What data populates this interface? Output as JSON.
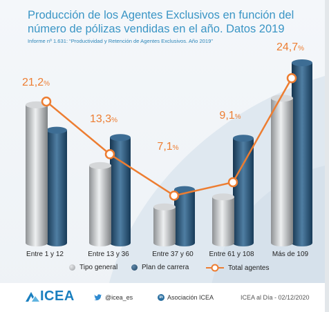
{
  "title": "Producción de los Agentes Exclusivos en función del número de pólizas vendidas en el año. Datos 2019",
  "subtitle": "Informe nº 1.631: “Productividad y Retención de Agentes Exclusivos. Año 2019”",
  "colors": {
    "title": "#3a95c5",
    "tipo_general": "#b9bcbf",
    "plan_de_carrera": "#2a5578",
    "total_line": "#ed7d31",
    "label": "#ed7d31"
  },
  "chart_data": {
    "type": "bar",
    "categories": [
      "Entre 1 y 12",
      "Entre 13 y 36",
      "Entre 37 y 60",
      "Entre 61 y 108",
      "Más de 109"
    ],
    "value_labels": [
      "21,2%",
      "13,3%",
      "7,1%",
      "9,1%",
      "24,7%"
    ],
    "series": [
      {
        "name": "Tipo general",
        "type": "bar",
        "values": [
          20.7,
          11.6,
          5.4,
          6.9,
          21.7
        ]
      },
      {
        "name": "Plan de carrera",
        "type": "bar",
        "values": [
          16.9,
          15.8,
          8.0,
          15.7,
          27.0
        ]
      },
      {
        "name": "Total agentes",
        "type": "line",
        "values": [
          21.2,
          13.3,
          7.1,
          9.1,
          24.7
        ]
      }
    ],
    "ylim": [
      0,
      30
    ],
    "grid": false,
    "legend": "bottom"
  },
  "legend": {
    "tipo_general": "Tipo general",
    "plan_de_carrera": "Plan de carrera",
    "total_agentes": "Total agentes"
  },
  "footer": {
    "logo": "ICEA",
    "twitter": "@icea_es",
    "linkedin": "Asociación ICEA",
    "date_note": "ICEA al Día - 02/12/2020"
  }
}
